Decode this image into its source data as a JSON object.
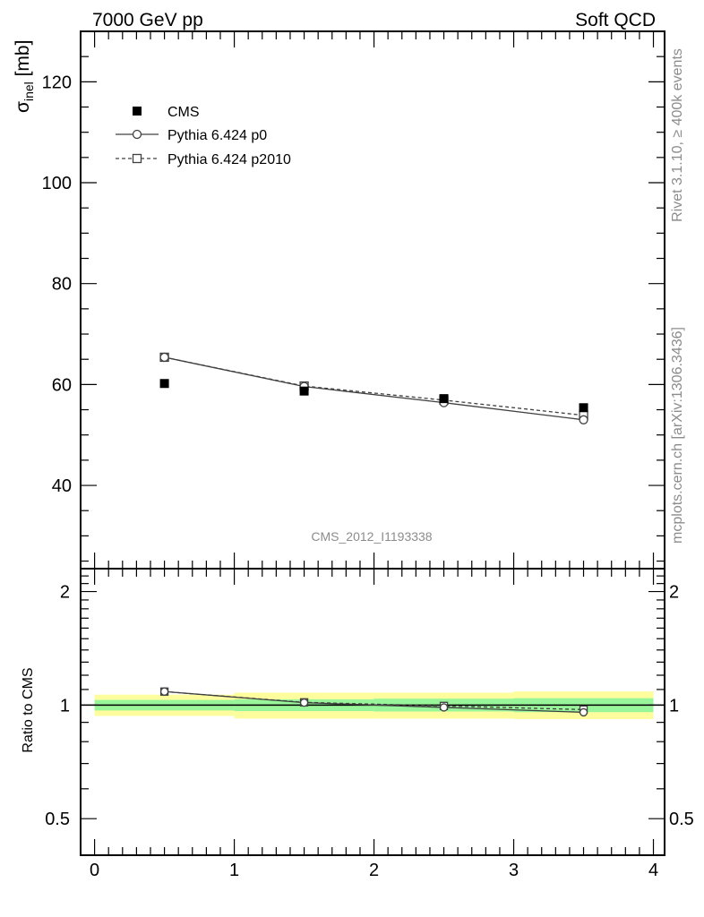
{
  "header": {
    "left": "7000 GeV pp",
    "right": "Soft QCD"
  },
  "side_text": {
    "rivet": "Rivet 3.1.10, ≥ 400k events",
    "source": "mcplots.cern.ch [arXiv:1306.3436]"
  },
  "analysis_id": "CMS_2012_I1193338",
  "main_plot": {
    "ylabel_symbol": "σ",
    "ylabel_sub": "inel",
    "ylabel_unit": " [mb]"
  },
  "ratio_plot": {
    "ylabel": "Ratio to CMS"
  },
  "legend": {
    "cms": "CMS",
    "p0": "Pythia 6.424 p0",
    "p2010": "Pythia 6.424 p2010"
  },
  "chart_data": [
    {
      "type": "scatter",
      "ylim": [
        23.5,
        130
      ],
      "xlim": [
        -0.1,
        4.08
      ],
      "yscale": "linear",
      "yticks": [
        40,
        60,
        80,
        100,
        120
      ],
      "ytick_labels": [
        "40",
        "60",
        "80",
        "100",
        "120"
      ],
      "x": [
        0.5,
        1.5,
        2.5,
        3.5
      ],
      "series": [
        {
          "name": "CMS",
          "values": [
            60.2,
            58.7,
            57.2,
            55.4
          ],
          "style": "filled-square",
          "color": "#000000"
        },
        {
          "name": "Pythia 6.424 p0",
          "values": [
            65.4,
            59.6,
            56.4,
            53.0
          ],
          "style": "line-circle",
          "color": "#404040"
        },
        {
          "name": "Pythia 6.424 p2010",
          "values": [
            65.4,
            59.7,
            56.9,
            53.9
          ],
          "style": "dashed-square",
          "color": "#404040"
        }
      ]
    },
    {
      "type": "line",
      "ylim": [
        0.4,
        2.3
      ],
      "xlim": [
        -0.1,
        4.08
      ],
      "yscale": "log",
      "yticks": [
        0.5,
        1,
        2
      ],
      "ytick_labels": [
        "0.5",
        "1",
        "2"
      ],
      "xticks": [
        0,
        1,
        2,
        3,
        4
      ],
      "xtick_labels": [
        "0",
        "1",
        "2",
        "3",
        "4"
      ],
      "x": [
        0.5,
        1.5,
        2.5,
        3.5
      ],
      "bins": [
        [
          0,
          1
        ],
        [
          1,
          2
        ],
        [
          2,
          3
        ],
        [
          3,
          4
        ]
      ],
      "band_inner": [
        [
          0.968,
          1.032
        ],
        [
          0.964,
          1.036
        ],
        [
          0.962,
          1.04
        ],
        [
          0.958,
          1.043
        ]
      ],
      "band_outer": [
        [
          0.936,
          1.066
        ],
        [
          0.921,
          1.079
        ],
        [
          0.921,
          1.079
        ],
        [
          0.918,
          1.087
        ]
      ],
      "series": [
        {
          "name": "Pythia 6.424 p0",
          "values": [
            1.086,
            1.015,
            0.986,
            0.957
          ]
        },
        {
          "name": "Pythia 6.424 p2010",
          "values": [
            1.086,
            1.017,
            0.995,
            0.973
          ]
        }
      ],
      "colors": {
        "inner_band": "#99f59a",
        "outer_band": "#fdfd9e",
        "reference_line": "#000000"
      }
    }
  ]
}
